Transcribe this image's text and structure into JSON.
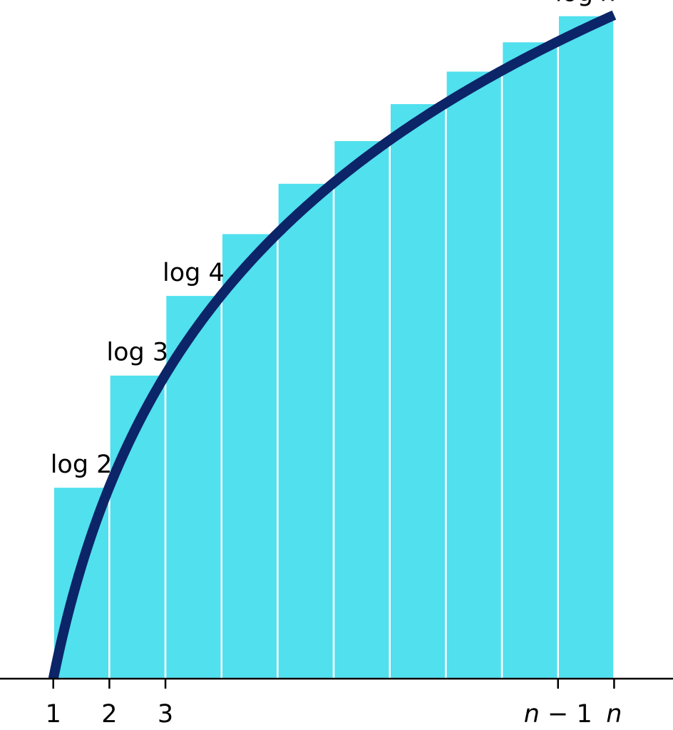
{
  "chart_data": {
    "type": "bar",
    "title": "",
    "xlabel": "",
    "ylabel": "",
    "x_edges": [
      1,
      2,
      3,
      4,
      5,
      6,
      7,
      8,
      9,
      10,
      11
    ],
    "bar_heights": [
      0.301,
      0.477,
      0.602,
      0.699,
      0.778,
      0.845,
      0.903,
      0.954,
      1.0,
      1.041
    ],
    "curve": {
      "function": "log x",
      "x_range": [
        1,
        11
      ],
      "color": "#0c2468"
    },
    "bar_color": "#50e0ee",
    "axis_color": "#000000",
    "xlim": [
      0.05,
      12.05
    ],
    "ylim": [
      0,
      1.065
    ],
    "x_ticks": [
      {
        "x": 1,
        "label": "1"
      },
      {
        "x": 2,
        "label": "2"
      },
      {
        "x": 3,
        "label": "3"
      },
      {
        "x": 10,
        "parts": [
          {
            "text": "n",
            "italic": true
          },
          {
            "text": " − 1",
            "italic": false
          }
        ]
      },
      {
        "x": 11,
        "parts": [
          {
            "text": "n",
            "italic": true
          }
        ]
      }
    ],
    "annotations": [
      {
        "bar": 1,
        "parts": [
          {
            "text": "log 2",
            "italic": false
          }
        ]
      },
      {
        "bar": 2,
        "parts": [
          {
            "text": "log 3",
            "italic": false
          }
        ]
      },
      {
        "bar": 3,
        "parts": [
          {
            "text": "log 4",
            "italic": false
          }
        ]
      },
      {
        "bar": 10,
        "parts": [
          {
            "text": "log ",
            "italic": false
          },
          {
            "text": "n",
            "italic": true
          }
        ]
      }
    ]
  }
}
